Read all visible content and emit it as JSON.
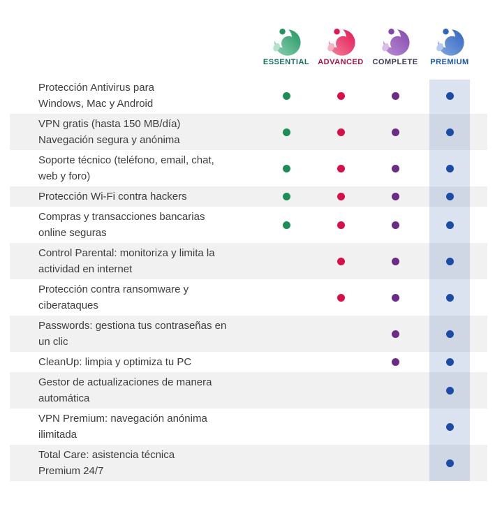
{
  "colors": {
    "text": "#3d3d3d",
    "stripe": "#f1f1f1",
    "premium_band": "rgba(31,82,163,0.16)",
    "background": "#ffffff"
  },
  "header": {
    "plans": [
      {
        "id": "essential",
        "name": "ESSENTIAL",
        "label_color": "#156f5b",
        "dot_color": "#1e8e57",
        "logo": {
          "light": "#8ed2b2",
          "dark": "#209562",
          "arm": "#b5e2cd"
        }
      },
      {
        "id": "advanced",
        "name": "ADVANCED",
        "label_color": "#a81147",
        "dot_color": "#d81049",
        "logo": {
          "light": "#f2849e",
          "dark": "#e41551",
          "arm": "#f6b3c4"
        }
      },
      {
        "id": "complete",
        "name": "COMPLETE",
        "label_color": "#3f3a55",
        "dot_color": "#6a2c86",
        "logo": {
          "light": "#bb8fd6",
          "dark": "#8347ad",
          "arm": "#d9bfe8"
        }
      },
      {
        "id": "premium",
        "name": "PREMIUM",
        "label_color": "#1b54b0",
        "dot_color": "#1b4da5",
        "logo": {
          "light": "#85a9e0",
          "dark": "#2f64c0",
          "arm": "#b3cbed"
        }
      }
    ]
  },
  "table": {
    "rows": [
      {
        "feature": "Protección Antivirus para\nWindows, Mac y Android",
        "included": [
          true,
          true,
          true,
          true
        ]
      },
      {
        "feature": "VPN gratis (hasta 150 MB/día)\nNavegación segura y anónima",
        "included": [
          true,
          true,
          true,
          true
        ]
      },
      {
        "feature": "Soporte técnico (teléfono, email, chat,\nweb y foro)",
        "included": [
          true,
          true,
          true,
          true
        ]
      },
      {
        "feature": "Protección Wi-Fi contra hackers",
        "included": [
          true,
          true,
          true,
          true
        ]
      },
      {
        "feature": "Compras y transacciones bancarias\nonline seguras",
        "included": [
          true,
          true,
          true,
          true
        ]
      },
      {
        "feature": "Control Parental: monitoriza y limita la\nactividad en internet",
        "included": [
          false,
          true,
          true,
          true
        ]
      },
      {
        "feature": "Protección contra ransomware y\nciberataques",
        "included": [
          false,
          true,
          true,
          true
        ]
      },
      {
        "feature": "Passwords: gestiona tus contraseñas en\nun clic",
        "included": [
          false,
          false,
          true,
          true
        ]
      },
      {
        "feature": "CleanUp: limpia y optimiza tu PC",
        "included": [
          false,
          false,
          true,
          true
        ]
      },
      {
        "feature": "Gestor de actualizaciones de manera\nautomática",
        "included": [
          false,
          false,
          false,
          true
        ]
      },
      {
        "feature": "VPN Premium: navegación anónima\nilimitada",
        "included": [
          false,
          false,
          false,
          true
        ]
      },
      {
        "feature": "Total Care: asistencia técnica\nPremium 24/7",
        "included": [
          false,
          false,
          false,
          true
        ]
      }
    ]
  }
}
